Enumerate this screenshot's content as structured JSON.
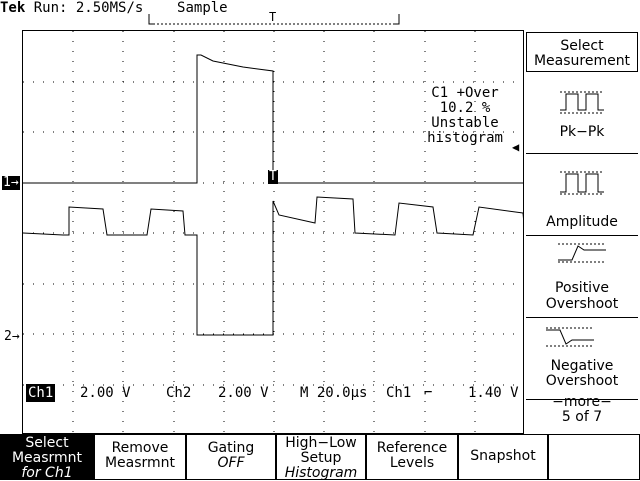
{
  "status": {
    "brand": "Tek",
    "run_label": "Run: 2.50MS/s",
    "mode": "Sample"
  },
  "trigger_position_marker": "T",
  "trigger_point_marker": "T",
  "channel_markers": {
    "ch1": "1→",
    "ch2": "2→"
  },
  "measurement": {
    "line1": "C1 +Over",
    "line2": "10.2 %",
    "line3": "Unstable",
    "line4": "histogram"
  },
  "trigger_level_arrow": "◀",
  "readout": {
    "ch1_label": "Ch1",
    "ch1_scale": "2.00 V",
    "ch2_label": "Ch2",
    "ch2_scale": "2.00 V",
    "timebase": "M 20.0µs",
    "trig_source": "Ch1",
    "trig_slope": "⌐",
    "trig_level": "1.40 V"
  },
  "side_menu": {
    "title_line1": "Select",
    "title_line2": "Measurement",
    "items": [
      {
        "label": "Pk−Pk",
        "icon": "pk-pk-icon"
      },
      {
        "label": "Amplitude",
        "icon": "amplitude-icon"
      },
      {
        "label_line1": "Positive",
        "label_line2": "Overshoot",
        "icon": "positive-overshoot-icon"
      },
      {
        "label_line1": "Negative",
        "label_line2": "Overshoot",
        "icon": "negative-overshoot-icon"
      }
    ],
    "more_line1": "−more−",
    "more_line2": "5 of 7"
  },
  "bottom_menu": [
    {
      "line1": "Select",
      "line2": "Measrmnt",
      "line3": "for Ch1"
    },
    {
      "line1": "Remove",
      "line2": "Measrmnt"
    },
    {
      "line1": "Gating",
      "line2": "OFF"
    },
    {
      "line1": "High−Low",
      "line2": "Setup",
      "line3": "Histogram"
    },
    {
      "line1": "Reference",
      "line2": "Levels"
    },
    {
      "line1": "Snapshot"
    }
  ]
}
